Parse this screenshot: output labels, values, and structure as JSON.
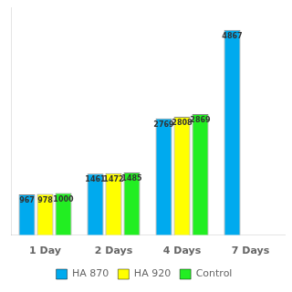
{
  "chart_data": {
    "type": "bar",
    "categories": [
      "1 Day",
      "2 Days",
      "4 Days",
      "7 Days"
    ],
    "series": [
      {
        "name": "HA 870",
        "color": "#00AAEE",
        "values": [
          967,
          1461,
          2769,
          4867
        ]
      },
      {
        "name": "HA 920",
        "color": "#FFFF00",
        "values": [
          978,
          1472,
          2808,
          null
        ]
      },
      {
        "name": "Control",
        "color": "#22EE22",
        "values": [
          1000,
          1485,
          2869,
          null
        ]
      }
    ],
    "ylim": [
      0,
      5400
    ],
    "grid": false,
    "legend": "bottom",
    "data_labels": true,
    "tick_labels": "x"
  }
}
